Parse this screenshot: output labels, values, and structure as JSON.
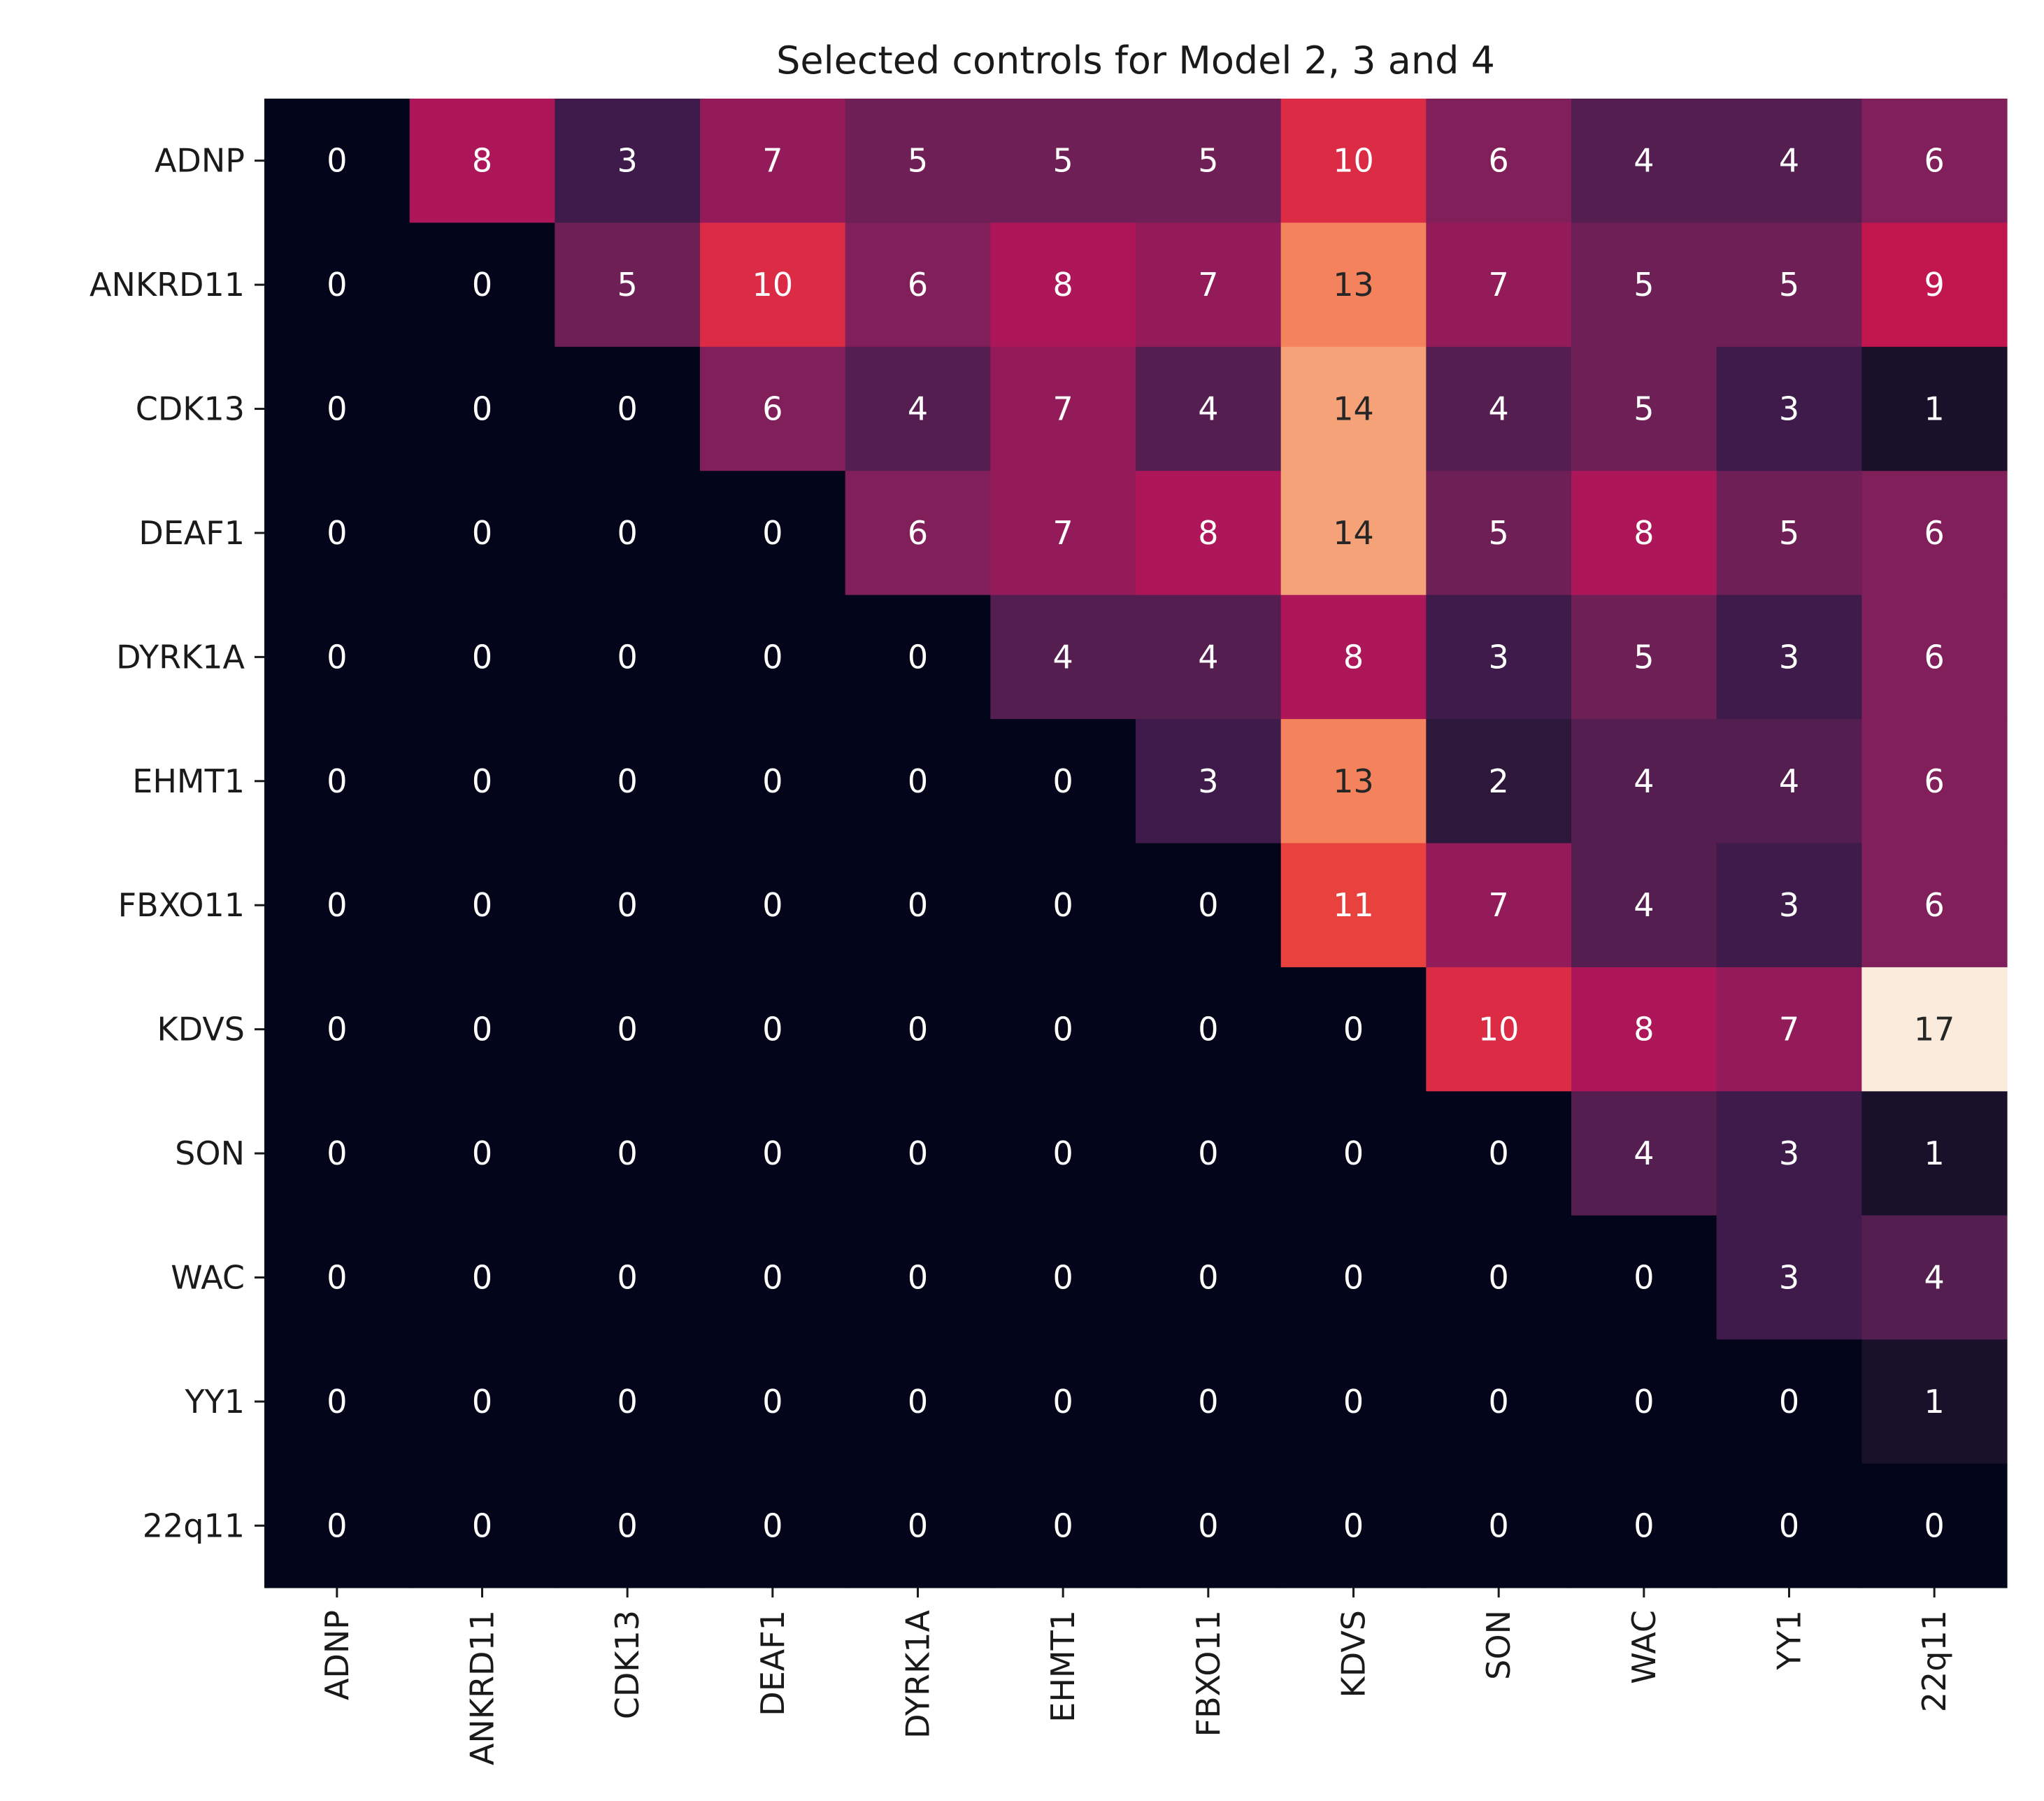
{
  "chart_data": {
    "type": "heatmap",
    "title": "Selected controls for Model 2, 3 and 4",
    "xlabel": "",
    "ylabel": "",
    "row_labels": [
      "ADNP",
      "ANKRD11",
      "CDK13",
      "DEAF1",
      "DYRK1A",
      "EHMT1",
      "FBXO11",
      "KDVS",
      "SON",
      "WAC",
      "YY1",
      "22q11"
    ],
    "col_labels": [
      "ADNP",
      "ANKRD11",
      "CDK13",
      "DEAF1",
      "DYRK1A",
      "EHMT1",
      "FBXO11",
      "KDVS",
      "SON",
      "WAC",
      "YY1",
      "22q11"
    ],
    "values": [
      [
        0,
        8,
        3,
        7,
        5,
        5,
        5,
        10,
        6,
        4,
        4,
        6
      ],
      [
        0,
        0,
        5,
        10,
        6,
        8,
        7,
        13,
        7,
        5,
        5,
        9
      ],
      [
        0,
        0,
        0,
        6,
        4,
        7,
        4,
        14,
        4,
        5,
        3,
        1
      ],
      [
        0,
        0,
        0,
        0,
        6,
        7,
        8,
        14,
        5,
        8,
        5,
        6
      ],
      [
        0,
        0,
        0,
        0,
        0,
        4,
        4,
        8,
        3,
        5,
        3,
        6
      ],
      [
        0,
        0,
        0,
        0,
        0,
        0,
        3,
        13,
        2,
        4,
        4,
        6
      ],
      [
        0,
        0,
        0,
        0,
        0,
        0,
        0,
        11,
        7,
        4,
        3,
        6
      ],
      [
        0,
        0,
        0,
        0,
        0,
        0,
        0,
        0,
        10,
        8,
        7,
        17
      ],
      [
        0,
        0,
        0,
        0,
        0,
        0,
        0,
        0,
        0,
        4,
        3,
        1
      ],
      [
        0,
        0,
        0,
        0,
        0,
        0,
        0,
        0,
        0,
        0,
        3,
        4
      ],
      [
        0,
        0,
        0,
        0,
        0,
        0,
        0,
        0,
        0,
        0,
        0,
        1
      ],
      [
        0,
        0,
        0,
        0,
        0,
        0,
        0,
        0,
        0,
        0,
        0,
        0
      ]
    ],
    "vmin": 0,
    "vmax": 17,
    "colormap": "rocket",
    "annotate": true,
    "colorbar": false
  }
}
